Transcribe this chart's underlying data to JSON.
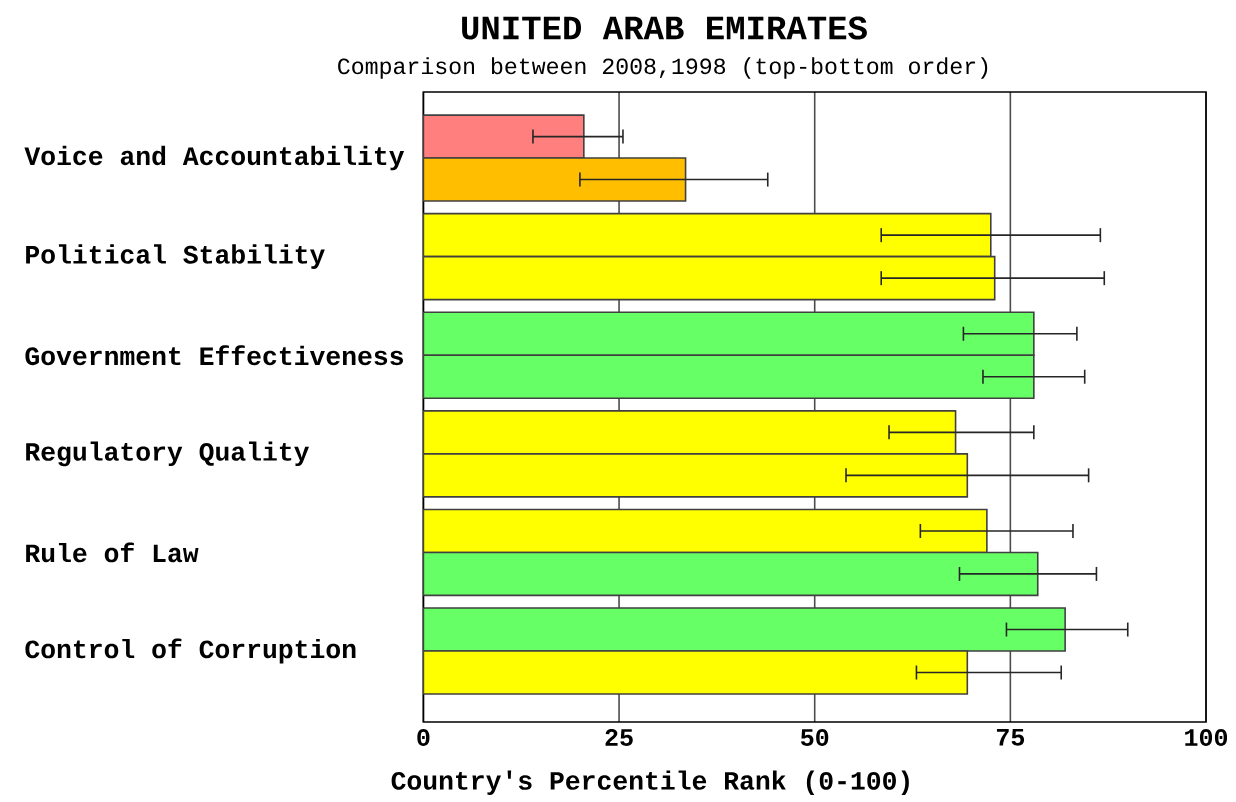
{
  "chart_data": {
    "type": "bar",
    "orientation": "horizontal",
    "title": "UNITED ARAB EMIRATES",
    "subtitle": "Comparison between 2008,1998 (top-bottom order)",
    "xlabel": "Country's Percentile Rank (0-100)",
    "categories": [
      "Voice and Accountability",
      "Political Stability",
      "Government Effectiveness",
      "Regulatory Quality",
      "Rule of Law",
      "Control of Corruption"
    ],
    "series": [
      {
        "colors": [
          "#ff7f7f",
          "#ffff00",
          "#66ff66",
          "#ffff00",
          "#ffff00",
          "#66ff66"
        ],
        "values": [
          20.5,
          72.5,
          78,
          68,
          72,
          82
        ],
        "errors": [
          [
            14,
            25.5
          ],
          [
            58.5,
            86.5
          ],
          [
            69,
            83.5
          ],
          [
            59.5,
            78
          ],
          [
            63.5,
            83
          ],
          [
            74.5,
            90
          ]
        ]
      },
      {
        "colors": [
          "#ffbf00",
          "#ffff00",
          "#66ff66",
          "#ffff00",
          "#66ff66",
          "#ffff00"
        ],
        "values": [
          33.5,
          73,
          78,
          69.5,
          78.5,
          69.5
        ],
        "errors": [
          [
            20,
            44
          ],
          [
            58.5,
            87
          ],
          [
            71.5,
            84.5
          ],
          [
            54,
            85
          ],
          [
            68.5,
            86
          ],
          [
            63,
            81.5
          ]
        ]
      }
    ],
    "xlim": [
      0,
      100
    ],
    "xticks": [
      0,
      25,
      50,
      75,
      100
    ],
    "grid": "x"
  }
}
